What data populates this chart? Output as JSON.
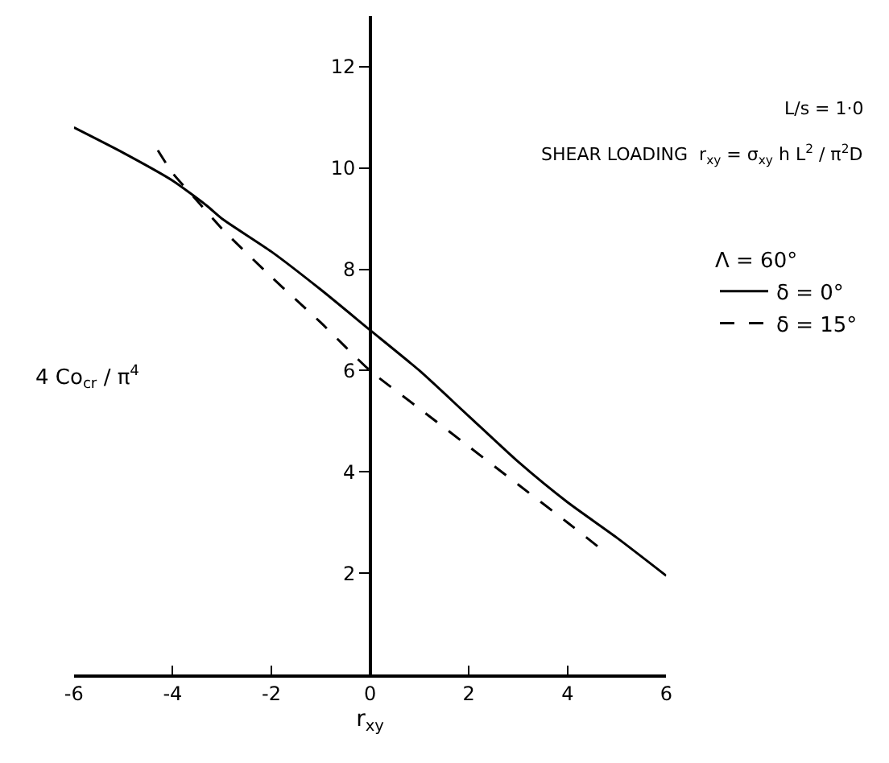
{
  "chart_data": {
    "type": "line",
    "xlabel": "r$_{xy}$",
    "ylabel": "4 Co$_{cr}$ / π$^{4}$",
    "legend_title": "Λ = 60°",
    "annotations": [
      "L/s = 1·0",
      "SHEAR LOADING  r$_{xy}$ = σ$_{xy}$ h L$^{2}$ / π$^{2}$D"
    ],
    "series": [
      {
        "name": "δ = 0°",
        "color": "#000000",
        "line_style": "solid",
        "x": [
          -6,
          -5,
          -4,
          -3.3,
          -3,
          -2,
          -1,
          0,
          1,
          2,
          3,
          4,
          5,
          6
        ],
        "values": [
          10.8,
          10.3,
          9.75,
          9.25,
          9.0,
          8.35,
          7.6,
          6.8,
          6.0,
          5.1,
          4.2,
          3.4,
          2.7,
          1.95
        ]
      },
      {
        "name": "δ = 15°",
        "color": "#000000",
        "line_style": "dashed",
        "x": [
          -4.3,
          -4,
          -3.5,
          -3,
          -2,
          -1,
          0,
          1,
          2,
          3,
          4,
          4.65
        ],
        "values": [
          10.35,
          9.9,
          9.35,
          8.8,
          7.85,
          6.95,
          6.0,
          5.25,
          4.5,
          3.75,
          3.0,
          2.5
        ]
      }
    ],
    "xlim": [
      -6,
      6
    ],
    "xticks": [
      -6,
      -4,
      -2,
      0,
      2,
      4,
      6
    ],
    "ylim": [
      0,
      13
    ],
    "yticks": [
      2,
      4,
      6,
      8,
      10,
      12
    ],
    "grid": false,
    "legend": "right",
    "marker": "none"
  }
}
